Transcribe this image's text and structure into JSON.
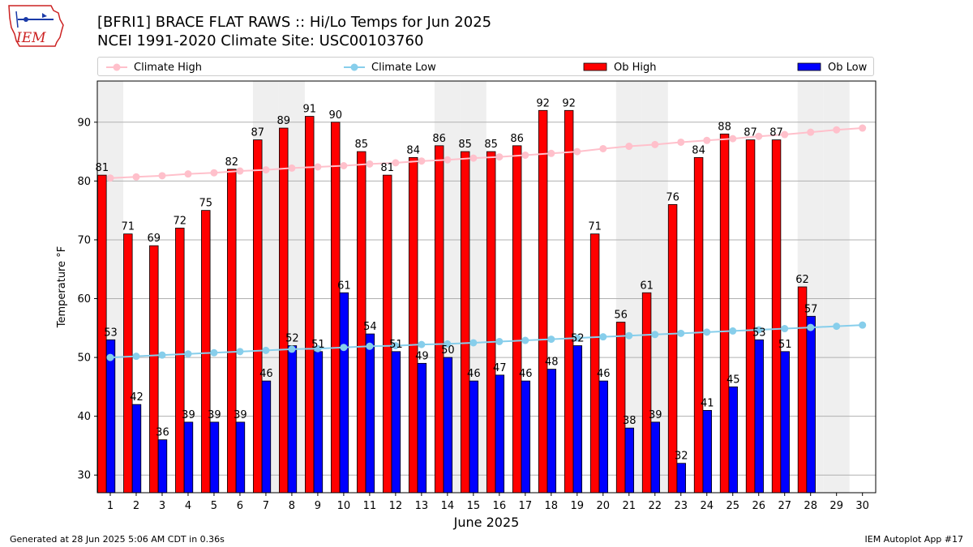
{
  "logo": {
    "text": "IEM"
  },
  "title": {
    "line1": "[BFRI1] BRACE FLAT RAWS :: Hi/Lo Temps for Jun 2025",
    "line2": "NCEI 1991-2020 Climate Site: USC00103760"
  },
  "legend": {
    "climate_high": "Climate High",
    "climate_low": "Climate Low",
    "ob_high": "Ob High",
    "ob_low": "Ob Low"
  },
  "colors": {
    "ob_high": "#ff0000",
    "ob_low": "#0000ff",
    "climate_high": "#ffc0cb",
    "climate_low": "#87ceeb",
    "weekend_shade": "#efefef",
    "grid": "#b0b0b0"
  },
  "chart_data": {
    "type": "bar",
    "xlabel": "June 2025",
    "ylabel": "Temperature °F",
    "ylim": [
      27,
      97
    ],
    "yticks": [
      30,
      40,
      50,
      60,
      70,
      80,
      90
    ],
    "grid": "horizontal",
    "legend_position": "top",
    "categories": [
      "1",
      "2",
      "3",
      "4",
      "5",
      "6",
      "7",
      "8",
      "9",
      "10",
      "11",
      "12",
      "13",
      "14",
      "15",
      "16",
      "17",
      "18",
      "19",
      "20",
      "21",
      "22",
      "23",
      "24",
      "25",
      "26",
      "27",
      "28",
      "29",
      "30"
    ],
    "weekend_days": [
      1,
      7,
      8,
      14,
      15,
      21,
      22,
      28,
      29
    ],
    "series": [
      {
        "name": "Ob High",
        "kind": "bar",
        "values": [
          81,
          71,
          69,
          72,
          75,
          82,
          87,
          89,
          91,
          90,
          85,
          81,
          84,
          86,
          85,
          85,
          86,
          92,
          92,
          71,
          56,
          61,
          76,
          84,
          88,
          87,
          87,
          62,
          null,
          null
        ]
      },
      {
        "name": "Ob Low",
        "kind": "bar",
        "values": [
          53,
          42,
          36,
          39,
          39,
          39,
          46,
          52,
          51,
          61,
          54,
          51,
          49,
          50,
          46,
          47,
          46,
          48,
          52,
          46,
          38,
          39,
          32,
          41,
          45,
          53,
          51,
          57,
          null,
          null
        ]
      },
      {
        "name": "Climate High",
        "kind": "line",
        "values": [
          80.5,
          80.7,
          80.9,
          81.2,
          81.4,
          81.7,
          81.9,
          82.2,
          82.4,
          82.6,
          82.9,
          83.1,
          83.4,
          83.6,
          83.9,
          84.1,
          84.4,
          84.7,
          85.0,
          85.5,
          85.9,
          86.2,
          86.6,
          86.9,
          87.2,
          87.6,
          87.9,
          88.3,
          88.7,
          89.0
        ]
      },
      {
        "name": "Climate Low",
        "kind": "line",
        "values": [
          50.0,
          50.2,
          50.4,
          50.6,
          50.8,
          51.0,
          51.2,
          51.4,
          51.5,
          51.7,
          51.9,
          52.0,
          52.2,
          52.3,
          52.5,
          52.7,
          52.9,
          53.1,
          53.3,
          53.5,
          53.7,
          53.9,
          54.1,
          54.3,
          54.5,
          54.7,
          54.9,
          55.1,
          55.3,
          55.5
        ]
      }
    ]
  },
  "footer": {
    "left": "Generated at 28 Jun 2025 5:06 AM CDT in 0.36s",
    "right": "IEM Autoplot App #17"
  }
}
